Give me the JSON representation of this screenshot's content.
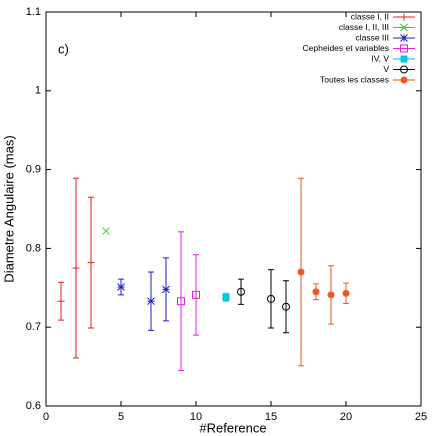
{
  "chart_data": {
    "type": "scatter",
    "annotation": "c)",
    "x_label": "#Reference",
    "y_label": "Diametre Angulaire (mas)",
    "xlim": [
      0,
      25
    ],
    "xticks": [
      0,
      5,
      10,
      15,
      20,
      25
    ],
    "ylim": [
      0.6,
      1.1
    ],
    "yticks": [
      0.6,
      0.7,
      0.8,
      0.9,
      1,
      1.1
    ],
    "legend": "upper right",
    "series": [
      {
        "name": "classe I, II",
        "color": "#e0201c",
        "marker": "plus",
        "x": [
          1,
          2,
          3
        ],
        "values": [
          0.733,
          0.775,
          0.782
        ],
        "errors": [
          0.024,
          0.114,
          0.083
        ]
      },
      {
        "name": "classe I, II, III",
        "color": "#2ecc2e",
        "marker": "x",
        "x": [
          4
        ],
        "values": [
          0.822
        ]
      },
      {
        "name": "classe III",
        "color": "#1c1cd0",
        "marker": "star",
        "x": [
          5,
          7,
          8
        ],
        "values": [
          0.751,
          0.733,
          0.748
        ],
        "errors": [
          0.01,
          0.037,
          0.04
        ]
      },
      {
        "name": "Cepheides et variables",
        "color": "#e020e0",
        "marker": "square",
        "x": [
          9,
          10
        ],
        "values": [
          0.733,
          0.741
        ],
        "errors": [
          0.088,
          0.051
        ]
      },
      {
        "name": "IV, V",
        "color": "#00c8e0",
        "marker": "filled-square",
        "x": [
          12
        ],
        "values": [
          0.738
        ],
        "errors": [
          0.005
        ]
      },
      {
        "name": "V",
        "color": "#000000",
        "marker": "circle",
        "x": [
          13,
          15,
          16
        ],
        "values": [
          0.745,
          0.736,
          0.726
        ],
        "errors": [
          0.016,
          0.037,
          0.033
        ]
      },
      {
        "name": "Toutes les classes",
        "color": "#f05a1e",
        "marker": "filled-circle",
        "x": [
          17,
          18,
          19,
          20
        ],
        "values": [
          0.77,
          0.745,
          0.741,
          0.743
        ],
        "errors": [
          0.119,
          0.01,
          0.037,
          0.013
        ]
      }
    ]
  }
}
